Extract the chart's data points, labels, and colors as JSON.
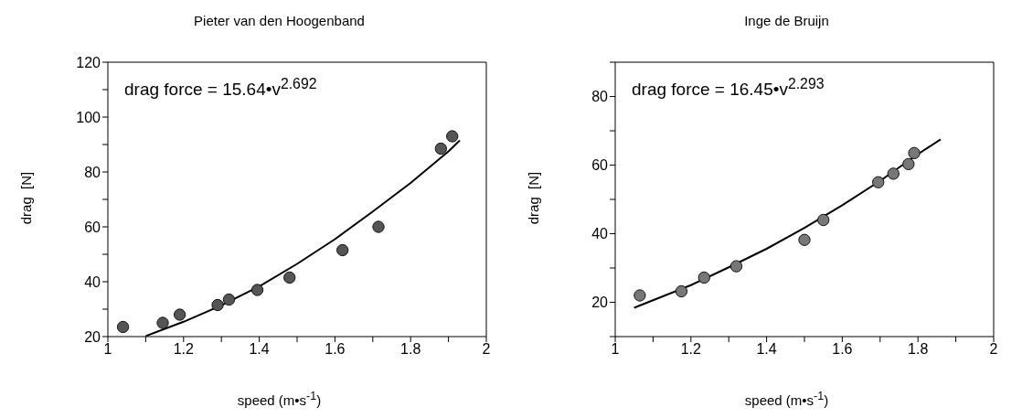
{
  "chart_data": [
    {
      "type": "scatter",
      "title": "Pieter van den Hoogenband",
      "xlabel": "speed  (m•s$^{-1}$)",
      "ylabel": "drag  [N]",
      "annotations": [
        "drag force = 15.64•v$^{2.692}$"
      ],
      "line_style": "solid",
      "grid": false,
      "xlim": [
        1,
        2
      ],
      "xticks": [
        1,
        {
          "value": 1.1,
          "label": null
        },
        1.2,
        {
          "value": 1.3,
          "label": null
        },
        1.4,
        {
          "value": 1.5,
          "label": null
        },
        1.6,
        {
          "value": 1.7,
          "label": null
        },
        1.8,
        {
          "value": 1.9,
          "label": null
        },
        2
      ],
      "ylim": [
        20,
        120
      ],
      "yticks": [
        20,
        {
          "value": 30,
          "label": null
        },
        40,
        {
          "value": 50,
          "label": null
        },
        60,
        {
          "value": 70,
          "label": null
        },
        80,
        {
          "value": 90,
          "label": null
        },
        100,
        {
          "value": 110,
          "label": null
        },
        120
      ],
      "series": [
        {
          "marker": "circle",
          "color": "#555555",
          "x": [
            1.04,
            1.145,
            1.19,
            1.29,
            1.32,
            1.395,
            1.48,
            1.62,
            1.715,
            1.88,
            1.91
          ],
          "values": [
            23.5,
            25,
            28,
            31.5,
            33.5,
            37,
            41.5,
            51.5,
            60,
            88.5,
            93
          ]
        },
        {
          "type": "line",
          "color": "#000000",
          "x": [
            1.1,
            1.2,
            1.3,
            1.4,
            1.5,
            1.6,
            1.7,
            1.8,
            1.9,
            1.93
          ],
          "values": [
            20.2,
            25.4,
            31.4,
            38.3,
            46.5,
            55.5,
            65.6,
            76,
            87.5,
            91.5
          ]
        }
      ]
    },
    {
      "type": "scatter",
      "title": "Inge de Bruijn",
      "xlabel": "speed  (m•s$^{-1}$)",
      "ylabel": "drag  [N]",
      "annotations": [
        "drag force = 16.45•v$^{2.293}$"
      ],
      "line_style": "solid",
      "grid": false,
      "xlim": [
        1,
        2
      ],
      "xticks": [
        1,
        {
          "value": 1.1,
          "label": null
        },
        1.2,
        {
          "value": 1.3,
          "label": null
        },
        1.4,
        {
          "value": 1.5,
          "label": null
        },
        1.6,
        {
          "value": 1.7,
          "label": null
        },
        1.8,
        {
          "value": 1.9,
          "label": null
        },
        2
      ],
      "ylim": [
        10,
        90
      ],
      "yticks": [
        {
          "value": 10,
          "label": null
        },
        20,
        {
          "value": 30,
          "label": null
        },
        40,
        {
          "value": 50,
          "label": null
        },
        60,
        {
          "value": 70,
          "label": null
        },
        80,
        {
          "value": 90,
          "label": null
        }
      ],
      "series": [
        {
          "marker": "circle",
          "color": "#777777",
          "x": [
            1.065,
            1.175,
            1.235,
            1.32,
            1.5,
            1.55,
            1.695,
            1.735,
            1.775,
            1.79
          ],
          "values": [
            22,
            23.2,
            27.2,
            30.5,
            38.2,
            44,
            55,
            57.5,
            60.3,
            63.5
          ]
        },
        {
          "type": "line",
          "color": "#000000",
          "x": [
            1.05,
            1.2,
            1.3,
            1.4,
            1.5,
            1.6,
            1.7,
            1.8,
            1.86
          ],
          "values": [
            18.4,
            25,
            30.2,
            35.6,
            41.7,
            48.3,
            55.4,
            63.2,
            67.5
          ]
        }
      ]
    }
  ]
}
